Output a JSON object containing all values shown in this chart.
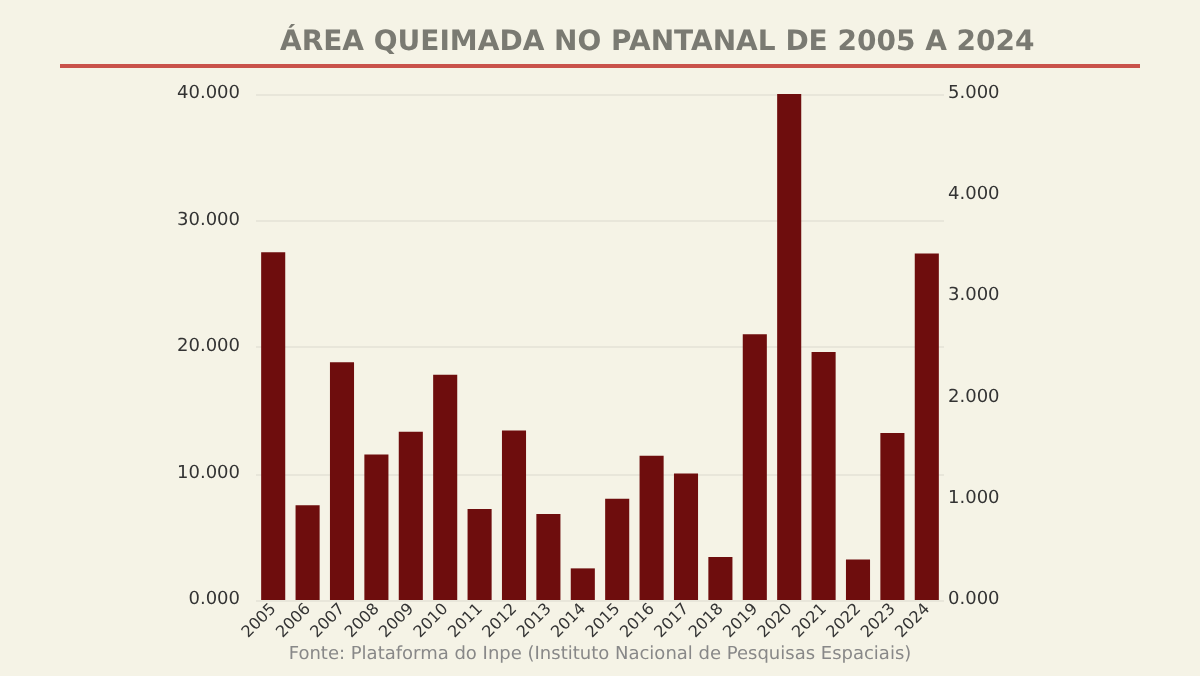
{
  "chart_data": {
    "type": "bar",
    "title": "ÁREA QUEIMADA NO PANTANAL DE 2005 A 2024",
    "categories": [
      "2005",
      "2006",
      "2007",
      "2008",
      "2009",
      "2010",
      "2011",
      "2012",
      "2013",
      "2014",
      "2015",
      "2016",
      "2017",
      "2018",
      "2019",
      "2020",
      "2021",
      "2022",
      "2023",
      "2024"
    ],
    "values": [
      27.5,
      7.5,
      18.8,
      11.5,
      13.3,
      17.8,
      7.2,
      13.4,
      6.8,
      2.5,
      8,
      11.4,
      10,
      3.4,
      21,
      40,
      19.6,
      3.2,
      13.2,
      27.4
    ],
    "color": "#6e0d0d",
    "ylim": [
      0,
      40
    ],
    "yticks": [
      {
        "value": 0,
        "label": "0.000"
      },
      {
        "value": 10,
        "label": "10.000"
      },
      {
        "value": 20,
        "label": "20.000"
      },
      {
        "value": 30,
        "label": "30.000"
      },
      {
        "value": 40,
        "label": "40.000"
      }
    ],
    "y2lim": [
      0,
      5
    ],
    "y2ticks": [
      {
        "value": 0,
        "label": "0.000"
      },
      {
        "value": 1,
        "label": "1.000"
      },
      {
        "value": 2,
        "label": "2.000"
      },
      {
        "value": 3,
        "label": "3.000"
      },
      {
        "value": 4,
        "label": "4.000"
      },
      {
        "value": 5,
        "label": "5.000"
      }
    ],
    "grid": "y",
    "annotations": [
      "Fonte: Plataforma do Inpe (Instituto Nacional de Pesquisas Espaciais)"
    ]
  }
}
